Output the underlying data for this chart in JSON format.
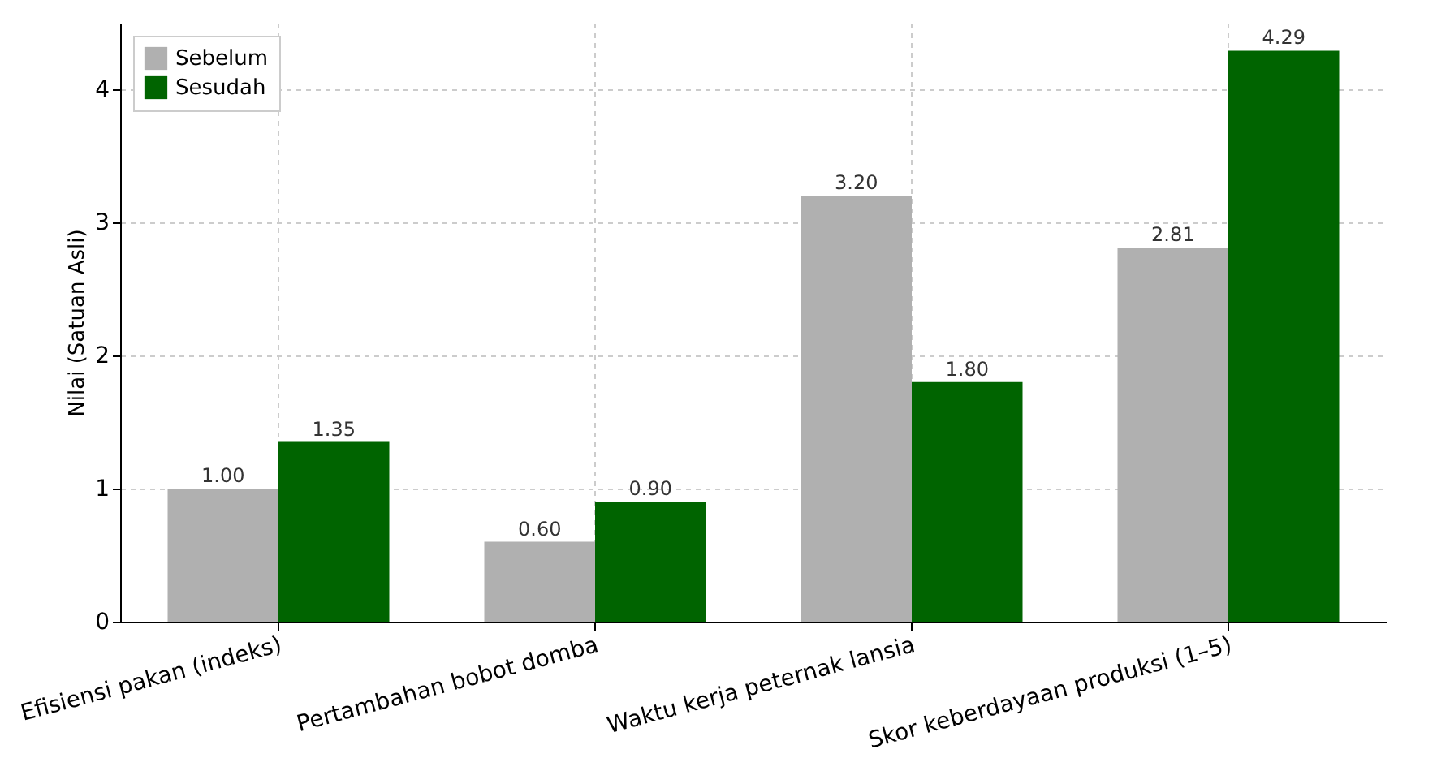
{
  "chart_data": {
    "type": "bar",
    "ylabel": "Nilai (Satuan Asli)",
    "categories": [
      "Efisiensi pakan (indeks)",
      "Pertambahan bobot domba",
      "Waktu kerja peternak lansia",
      "Skor keberdayaan produksi (1–5)"
    ],
    "series": [
      {
        "name": "Sebelum",
        "color": "#b0b0b0",
        "values": [
          1.0,
          0.6,
          3.2,
          2.81
        ],
        "value_labels": [
          "1.00",
          "0.60",
          "3.20",
          "2.81"
        ]
      },
      {
        "name": "Sesudah",
        "color": "#006400",
        "values": [
          1.35,
          0.9,
          1.8,
          4.29
        ],
        "value_labels": [
          "1.35",
          "0.90",
          "1.80",
          "4.29"
        ]
      }
    ],
    "ylim": [
      0,
      4.5
    ],
    "yticks": [
      0,
      1,
      2,
      3,
      4
    ],
    "grid": true,
    "legend": "top left"
  }
}
